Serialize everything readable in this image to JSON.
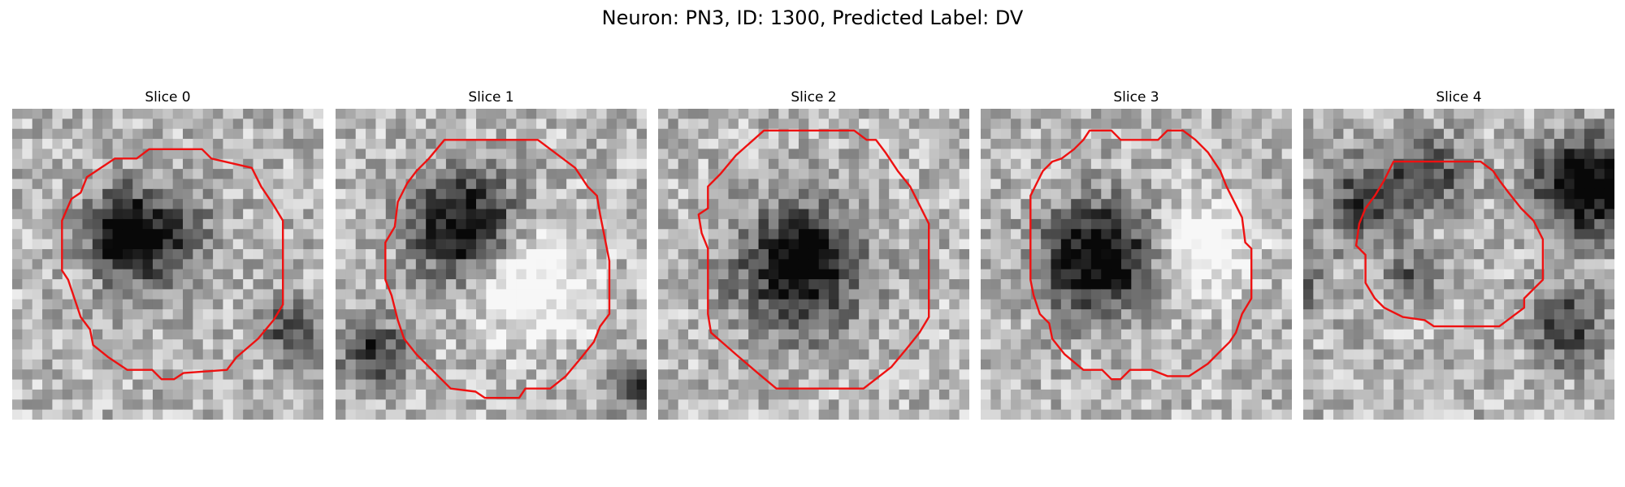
{
  "figure": {
    "title": "Neuron: PN3, ID: 1300, Predicted Label: DV",
    "overlay_color": "#ee1111"
  },
  "panels": [
    {
      "title": "Slice 0",
      "roi": [
        [
          0.44,
          0.13
        ],
        [
          0.61,
          0.13
        ],
        [
          0.64,
          0.16
        ],
        [
          0.77,
          0.19
        ],
        [
          0.8,
          0.25
        ],
        [
          0.84,
          0.31
        ],
        [
          0.87,
          0.36
        ],
        [
          0.87,
          0.63
        ],
        [
          0.84,
          0.68
        ],
        [
          0.79,
          0.74
        ],
        [
          0.72,
          0.8
        ],
        [
          0.69,
          0.84
        ],
        [
          0.55,
          0.85
        ],
        [
          0.52,
          0.87
        ],
        [
          0.48,
          0.87
        ],
        [
          0.45,
          0.84
        ],
        [
          0.37,
          0.84
        ],
        [
          0.31,
          0.8
        ],
        [
          0.26,
          0.76
        ],
        [
          0.25,
          0.71
        ],
        [
          0.22,
          0.67
        ],
        [
          0.2,
          0.61
        ],
        [
          0.18,
          0.55
        ],
        [
          0.16,
          0.52
        ],
        [
          0.16,
          0.36
        ],
        [
          0.19,
          0.29
        ],
        [
          0.22,
          0.27
        ],
        [
          0.24,
          0.22
        ],
        [
          0.27,
          0.2
        ],
        [
          0.33,
          0.16
        ],
        [
          0.4,
          0.16
        ]
      ],
      "seed": 11,
      "blobs": [
        [
          0.44,
          0.42,
          0.18,
          0.55
        ],
        [
          0.35,
          0.39,
          0.1,
          0.45
        ],
        [
          0.9,
          0.7,
          0.1,
          0.45
        ]
      ]
    },
    {
      "title": "Slice 1",
      "roi": [
        [
          0.35,
          0.1
        ],
        [
          0.65,
          0.1
        ],
        [
          0.69,
          0.13
        ],
        [
          0.73,
          0.16
        ],
        [
          0.77,
          0.19
        ],
        [
          0.81,
          0.25
        ],
        [
          0.84,
          0.28
        ],
        [
          0.85,
          0.34
        ],
        [
          0.87,
          0.44
        ],
        [
          0.88,
          0.49
        ],
        [
          0.88,
          0.66
        ],
        [
          0.85,
          0.7
        ],
        [
          0.83,
          0.75
        ],
        [
          0.79,
          0.8
        ],
        [
          0.74,
          0.86
        ],
        [
          0.69,
          0.9
        ],
        [
          0.61,
          0.9
        ],
        [
          0.59,
          0.93
        ],
        [
          0.48,
          0.93
        ],
        [
          0.45,
          0.91
        ],
        [
          0.37,
          0.9
        ],
        [
          0.34,
          0.87
        ],
        [
          0.31,
          0.84
        ],
        [
          0.26,
          0.79
        ],
        [
          0.22,
          0.74
        ],
        [
          0.2,
          0.68
        ],
        [
          0.18,
          0.6
        ],
        [
          0.16,
          0.55
        ],
        [
          0.16,
          0.43
        ],
        [
          0.19,
          0.38
        ],
        [
          0.2,
          0.3
        ],
        [
          0.23,
          0.24
        ],
        [
          0.26,
          0.2
        ],
        [
          0.3,
          0.16
        ]
      ],
      "seed": 23,
      "blobs": [
        [
          0.42,
          0.38,
          0.17,
          0.75
        ],
        [
          0.62,
          0.55,
          0.18,
          -0.45
        ],
        [
          0.12,
          0.78,
          0.1,
          0.55
        ],
        [
          0.95,
          0.88,
          0.08,
          0.55
        ]
      ]
    },
    {
      "title": "Slice 2",
      "roi": [
        [
          0.34,
          0.07
        ],
        [
          0.63,
          0.07
        ],
        [
          0.67,
          0.1
        ],
        [
          0.7,
          0.1
        ],
        [
          0.73,
          0.14
        ],
        [
          0.77,
          0.2
        ],
        [
          0.81,
          0.25
        ],
        [
          0.84,
          0.31
        ],
        [
          0.87,
          0.37
        ],
        [
          0.87,
          0.67
        ],
        [
          0.84,
          0.72
        ],
        [
          0.8,
          0.77
        ],
        [
          0.75,
          0.83
        ],
        [
          0.66,
          0.9
        ],
        [
          0.38,
          0.9
        ],
        [
          0.32,
          0.85
        ],
        [
          0.25,
          0.79
        ],
        [
          0.17,
          0.72
        ],
        [
          0.16,
          0.66
        ],
        [
          0.16,
          0.45
        ],
        [
          0.14,
          0.4
        ],
        [
          0.13,
          0.34
        ],
        [
          0.16,
          0.32
        ],
        [
          0.16,
          0.25
        ],
        [
          0.2,
          0.21
        ],
        [
          0.25,
          0.15
        ]
      ],
      "seed": 37,
      "blobs": [
        [
          0.45,
          0.52,
          0.2,
          0.65
        ],
        [
          0.5,
          0.45,
          0.1,
          0.3
        ]
      ]
    },
    {
      "title": "Slice 3",
      "roi": [
        [
          0.35,
          0.07
        ],
        [
          0.42,
          0.07
        ],
        [
          0.45,
          0.1
        ],
        [
          0.57,
          0.1
        ],
        [
          0.6,
          0.07
        ],
        [
          0.65,
          0.07
        ],
        [
          0.69,
          0.1
        ],
        [
          0.73,
          0.14
        ],
        [
          0.77,
          0.2
        ],
        [
          0.79,
          0.25
        ],
        [
          0.82,
          0.31
        ],
        [
          0.84,
          0.35
        ],
        [
          0.85,
          0.43
        ],
        [
          0.87,
          0.45
        ],
        [
          0.87,
          0.61
        ],
        [
          0.84,
          0.66
        ],
        [
          0.82,
          0.72
        ],
        [
          0.8,
          0.75
        ],
        [
          0.77,
          0.78
        ],
        [
          0.73,
          0.82
        ],
        [
          0.67,
          0.86
        ],
        [
          0.6,
          0.86
        ],
        [
          0.55,
          0.84
        ],
        [
          0.48,
          0.84
        ],
        [
          0.45,
          0.87
        ],
        [
          0.42,
          0.87
        ],
        [
          0.39,
          0.84
        ],
        [
          0.33,
          0.84
        ],
        [
          0.27,
          0.79
        ],
        [
          0.23,
          0.74
        ],
        [
          0.22,
          0.69
        ],
        [
          0.19,
          0.66
        ],
        [
          0.17,
          0.6
        ],
        [
          0.16,
          0.55
        ],
        [
          0.16,
          0.28
        ],
        [
          0.18,
          0.24
        ],
        [
          0.2,
          0.2
        ],
        [
          0.23,
          0.17
        ],
        [
          0.26,
          0.16
        ],
        [
          0.3,
          0.13
        ],
        [
          0.33,
          0.1
        ]
      ],
      "seed": 53,
      "blobs": [
        [
          0.38,
          0.48,
          0.17,
          0.85
        ],
        [
          0.72,
          0.45,
          0.15,
          -0.4
        ]
      ]
    },
    {
      "title": "Slice 4",
      "roi": [
        [
          0.29,
          0.17
        ],
        [
          0.57,
          0.17
        ],
        [
          0.61,
          0.2
        ],
        [
          0.63,
          0.23
        ],
        [
          0.66,
          0.27
        ],
        [
          0.7,
          0.32
        ],
        [
          0.74,
          0.36
        ],
        [
          0.77,
          0.42
        ],
        [
          0.77,
          0.55
        ],
        [
          0.74,
          0.58
        ],
        [
          0.71,
          0.61
        ],
        [
          0.71,
          0.64
        ],
        [
          0.67,
          0.67
        ],
        [
          0.63,
          0.7
        ],
        [
          0.42,
          0.7
        ],
        [
          0.39,
          0.68
        ],
        [
          0.32,
          0.67
        ],
        [
          0.26,
          0.64
        ],
        [
          0.23,
          0.61
        ],
        [
          0.2,
          0.56
        ],
        [
          0.2,
          0.47
        ],
        [
          0.17,
          0.44
        ],
        [
          0.18,
          0.37
        ],
        [
          0.2,
          0.32
        ],
        [
          0.23,
          0.28
        ],
        [
          0.26,
          0.23
        ]
      ],
      "seed": 71,
      "blobs": [
        [
          0.9,
          0.25,
          0.15,
          0.85
        ],
        [
          0.2,
          0.3,
          0.14,
          0.45
        ],
        [
          0.4,
          0.2,
          0.12,
          0.45
        ],
        [
          0.85,
          0.7,
          0.12,
          0.5
        ],
        [
          0.35,
          0.55,
          0.08,
          0.35
        ],
        [
          -0.05,
          0.55,
          0.1,
          0.45
        ]
      ]
    }
  ]
}
